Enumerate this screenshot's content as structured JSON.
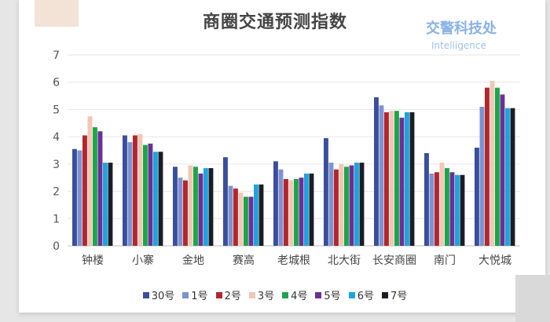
{
  "header": {
    "title": "商圈交通预测指数"
  },
  "watermark": {
    "line1": "交警科技处",
    "line2": "Intelligence"
  },
  "chart_data": {
    "type": "bar",
    "title": "商圈交通预测指数",
    "xlabel": "",
    "ylabel": "",
    "ylim": [
      0,
      7
    ],
    "yticks": [
      0,
      1,
      2,
      3,
      4,
      5,
      6,
      7
    ],
    "grid": true,
    "legend_position": "bottom",
    "categories": [
      "钟楼",
      "小寨",
      "金地",
      "赛高",
      "老城根",
      "北大街",
      "长安商圈",
      "南门",
      "大悦城"
    ],
    "series": [
      {
        "name": "30号",
        "color": "#3a4e9c",
        "values": [
          3.55,
          4.05,
          2.9,
          3.25,
          3.1,
          3.95,
          5.45,
          3.4,
          3.6
        ]
      },
      {
        "name": "1号",
        "color": "#7d92cf",
        "values": [
          3.5,
          3.8,
          2.5,
          2.2,
          2.8,
          3.05,
          5.15,
          2.65,
          5.1
        ]
      },
      {
        "name": "2号",
        "color": "#b3262d",
        "values": [
          4.05,
          4.05,
          2.4,
          2.1,
          2.45,
          2.8,
          4.9,
          2.7,
          5.8
        ]
      },
      {
        "name": "3号",
        "color": "#f2c7b5",
        "values": [
          4.75,
          4.1,
          2.95,
          1.95,
          2.4,
          3.0,
          4.95,
          3.05,
          6.05
        ]
      },
      {
        "name": "4号",
        "color": "#1aa64a",
        "values": [
          4.35,
          3.7,
          2.9,
          1.8,
          2.45,
          2.9,
          4.95,
          2.85,
          5.8
        ]
      },
      {
        "name": "5号",
        "color": "#6a3096",
        "values": [
          4.2,
          3.75,
          2.65,
          1.8,
          2.5,
          2.95,
          4.7,
          2.7,
          5.55
        ]
      },
      {
        "name": "6号",
        "color": "#1fa3e0",
        "values": [
          3.05,
          3.45,
          2.85,
          2.25,
          2.65,
          3.05,
          4.9,
          2.6,
          5.05
        ]
      },
      {
        "name": "7号",
        "color": "#1b1d26",
        "values": [
          3.05,
          3.45,
          2.85,
          2.25,
          2.65,
          3.05,
          4.9,
          2.6,
          5.05
        ]
      }
    ]
  }
}
